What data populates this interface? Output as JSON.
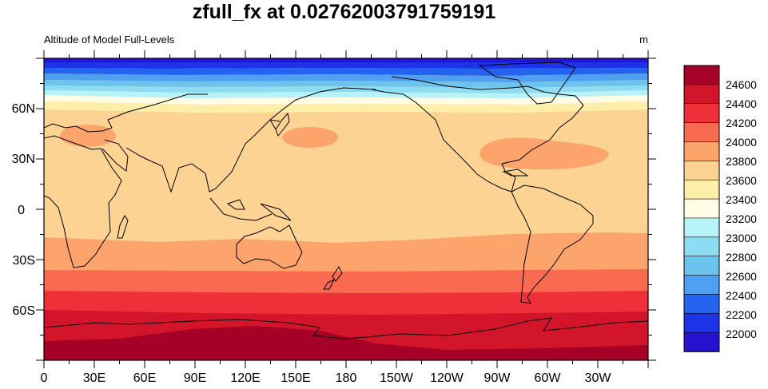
{
  "title": "zfull_fx at 0.02762003791759191",
  "left_string": "Altitude of Model Full-Levels",
  "right_string": "m",
  "map": {
    "projection": "cylindrical-equidistant",
    "lon_range": [
      0,
      360
    ],
    "lat_range": [
      -90,
      90
    ],
    "lon_tick_labels": [
      "0",
      "30E",
      "60E",
      "90E",
      "120E",
      "150E",
      "180",
      "150W",
      "120W",
      "90W",
      "60W",
      "30W"
    ],
    "lat_tick_labels": [
      "60N",
      "30N",
      "0",
      "30S",
      "60S"
    ],
    "features": [
      "continent-outlines",
      "high-anomaly-mediterranean",
      "high-anomaly-northwest-pacific",
      "high-anomaly-north-atlantic"
    ]
  },
  "colorbar": {
    "levels": [
      "24600",
      "24400",
      "24200",
      "24000",
      "23800",
      "23600",
      "23400",
      "23200",
      "23000",
      "22800",
      "22600",
      "22400",
      "22200",
      "22000"
    ],
    "colors": [
      "#a50026",
      "#d3152b",
      "#ef3039",
      "#f96b50",
      "#fca46b",
      "#fdd394",
      "#fdeeaa",
      "#fffde6",
      "#b6f3fb",
      "#8edcf2",
      "#6cc3ee",
      "#4f9ff2",
      "#2463f0",
      "#1c33e8",
      "#2712cf"
    ]
  }
}
